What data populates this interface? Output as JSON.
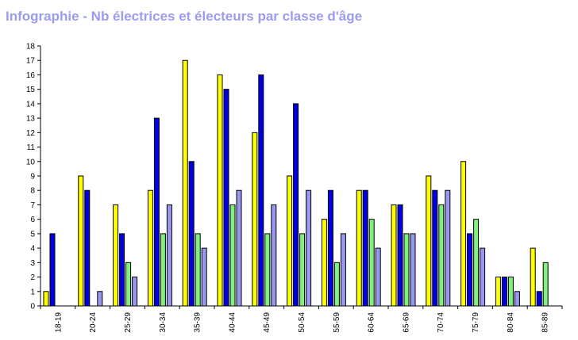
{
  "chart_data": {
    "type": "bar",
    "title": "Infographie - Nb électrices et électeurs par classe d'âge",
    "xlabel": "",
    "ylabel": "",
    "ylim": [
      0,
      18
    ],
    "yticks": [
      0,
      1,
      2,
      3,
      4,
      5,
      6,
      7,
      8,
      9,
      10,
      11,
      12,
      13,
      14,
      15,
      16,
      17,
      18
    ],
    "grid": false,
    "legend": "none",
    "categories": [
      "18-19",
      "20-24",
      "25-29",
      "30-34",
      "35-39",
      "40-44",
      "45-49",
      "50-54",
      "55-59",
      "60-64",
      "65-69",
      "70-74",
      "75-79",
      "80-84",
      "85-89"
    ],
    "series": [
      {
        "color": "#ffff00",
        "values": [
          1,
          9,
          7,
          8,
          17,
          16,
          12,
          9,
          6,
          8,
          7,
          9,
          10,
          2,
          4
        ]
      },
      {
        "color": "#0000e0",
        "values": [
          5,
          8,
          5,
          13,
          10,
          15,
          16,
          14,
          8,
          8,
          7,
          8,
          5,
          2,
          1
        ]
      },
      {
        "color": "#80f080",
        "values": [
          0,
          0,
          3,
          5,
          5,
          7,
          5,
          5,
          3,
          6,
          5,
          7,
          6,
          2,
          3
        ]
      },
      {
        "color": "#9898f0",
        "values": [
          0,
          1,
          2,
          7,
          4,
          8,
          7,
          8,
          5,
          4,
          5,
          8,
          4,
          1,
          0
        ]
      }
    ]
  }
}
